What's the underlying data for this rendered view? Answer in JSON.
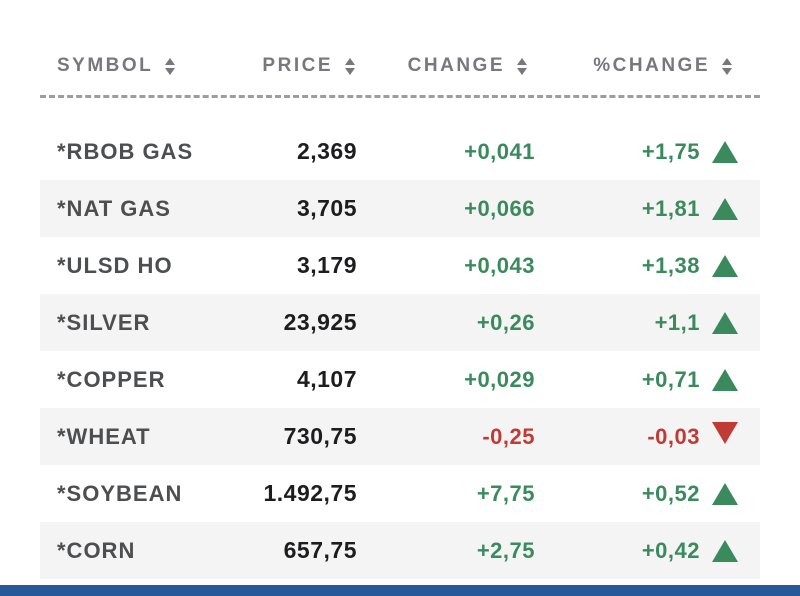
{
  "table": {
    "columns": [
      {
        "label": "SYMBOL"
      },
      {
        "label": "PRICE"
      },
      {
        "label": "CHANGE"
      },
      {
        "label": "%CHANGE"
      }
    ],
    "rows": [
      {
        "symbol": "*RBOB GAS",
        "price": "2,369",
        "change": "+0,041",
        "pct_change": "+1,75",
        "direction": "up"
      },
      {
        "symbol": "*NAT GAS",
        "price": "3,705",
        "change": "+0,066",
        "pct_change": "+1,81",
        "direction": "up"
      },
      {
        "symbol": "*ULSD HO",
        "price": "3,179",
        "change": "+0,043",
        "pct_change": "+1,38",
        "direction": "up"
      },
      {
        "symbol": "*SILVER",
        "price": "23,925",
        "change": "+0,26",
        "pct_change": "+1,1",
        "direction": "up"
      },
      {
        "symbol": "*COPPER",
        "price": "4,107",
        "change": "+0,029",
        "pct_change": "+0,71",
        "direction": "up"
      },
      {
        "symbol": "*WHEAT",
        "price": "730,75",
        "change": "-0,25",
        "pct_change": "-0,03",
        "direction": "down"
      },
      {
        "symbol": "*SOYBEAN",
        "price": "1.492,75",
        "change": "+7,75",
        "pct_change": "+0,52",
        "direction": "up"
      },
      {
        "symbol": "*CORN",
        "price": "657,75",
        "change": "+2,75",
        "pct_change": "+0,42",
        "direction": "up"
      }
    ]
  },
  "icons": {
    "sort-icon": "up+down triangles ▲▼",
    "up-triangle-icon": "▲",
    "down-triangle-icon": "▼"
  },
  "colors": {
    "up": "#3a8a5e",
    "down": "#c03b33",
    "header_text": "#77787c",
    "row_alt_bg": "#f4f4f5",
    "bottom_bar": "#27599a"
  }
}
